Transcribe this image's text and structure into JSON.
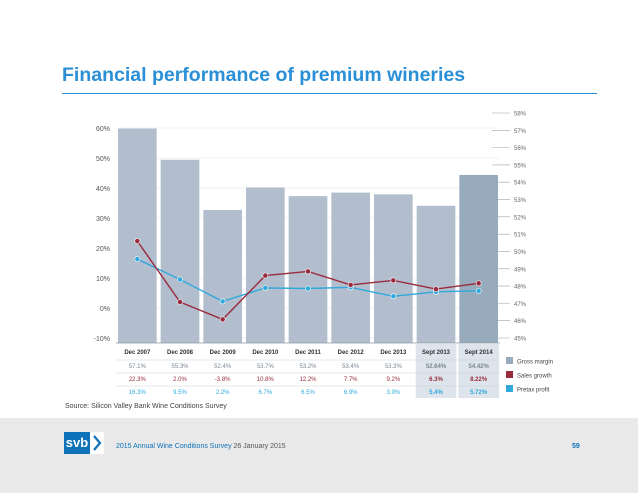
{
  "slide": {
    "title": "Financial performance of premium wineries",
    "source": "Source: Silicon Valley Bank Wine Conditions Survey",
    "footer_survey": "2015 Annual Wine Conditions Survey",
    "footer_date": "26 January 2015",
    "page_number": "59",
    "logo_text": "svb"
  },
  "colors": {
    "accent": "#2a8fd6",
    "bar": "#b2becd",
    "bar_highlight": "#98abbc",
    "sales_growth": "#9a2b3d",
    "pretax_profit": "#2fa8dc"
  },
  "chart_data": {
    "type": "bar",
    "categories": [
      "Dec 2007",
      "Dec 2008",
      "Dec 2009",
      "Dec 2010",
      "Dec 2011",
      "Dec 2012",
      "Dec 2013",
      "Sept 2013",
      "Sept 2014"
    ],
    "highlight_categories": [
      "Sept 2013",
      "Sept 2014"
    ],
    "left_axis": {
      "ticks": [
        "60%",
        "50%",
        "40%",
        "30%",
        "20%",
        "10%",
        "0%",
        "-10%"
      ],
      "range": [
        -10,
        60
      ]
    },
    "right_axis": {
      "ticks": [
        "58%",
        "57%",
        "56%",
        "55%",
        "54%",
        "53%",
        "52%",
        "51%",
        "50%",
        "49%",
        "48%",
        "47%",
        "46%",
        "45%"
      ],
      "range": [
        45,
        58
      ]
    },
    "series": [
      {
        "name": "Gross margin",
        "type": "bar",
        "axis": "right",
        "values": [
          57.1,
          55.3,
          52.4,
          53.7,
          53.2,
          53.4,
          53.3,
          52.64,
          54.42
        ],
        "labels": [
          "57.1%",
          "55.3%",
          "52.4%",
          "53.7%",
          "53.2%",
          "53.4%",
          "53.3%",
          "52.64%",
          "54.42%"
        ]
      },
      {
        "name": "Sales growth",
        "type": "line",
        "axis": "left",
        "values": [
          22.3,
          2.0,
          -3.8,
          10.8,
          12.2,
          7.7,
          9.2,
          6.3,
          8.22
        ],
        "labels": [
          "22.3%",
          "2.0%",
          "-3.8%",
          "10.8%",
          "12.2%",
          "7.7%",
          "9.2%",
          "6.3%",
          "8.22%"
        ]
      },
      {
        "name": "Pretax profit",
        "type": "line",
        "axis": "left",
        "values": [
          16.3,
          9.5,
          2.2,
          6.7,
          6.5,
          6.9,
          3.9,
          5.4,
          5.72
        ],
        "labels": [
          "16.3%",
          "9.5%",
          "2.2%",
          "6.7%",
          "6.5%",
          "6.9%",
          "3.9%",
          "5.4%",
          "5.72%"
        ]
      }
    ],
    "legend": [
      "Gross margin",
      "Sales growth",
      "Pretax profit"
    ],
    "legend_position": "bottom-right"
  }
}
